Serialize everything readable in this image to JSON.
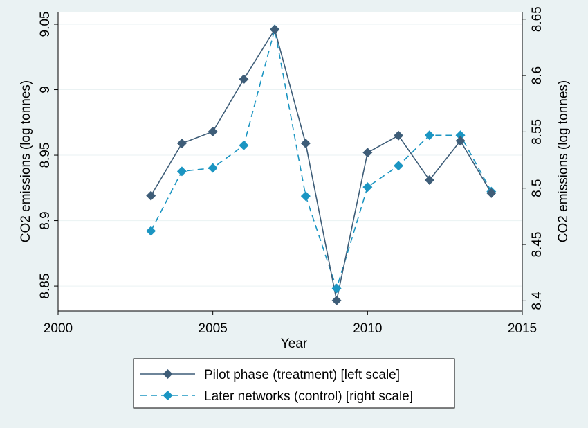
{
  "chart_data": {
    "type": "line",
    "title": "",
    "xlabel": "Year",
    "ylabel_left": "CO2 emissions (log tonnes)",
    "ylabel_right": "CO2 emissions (log tonnes)",
    "xlim": [
      2000,
      2015
    ],
    "ylim_left": [
      8.831,
      9.059
    ],
    "ylim_right": [
      8.391,
      8.656
    ],
    "x_ticks": [
      2000,
      2005,
      2010,
      2015
    ],
    "y_ticks_left": [
      8.85,
      8.9,
      8.95,
      9,
      9.05
    ],
    "y_ticks_left_labels": [
      "8.85",
      "8.9",
      "8.95",
      "9",
      "9.05"
    ],
    "y_ticks_right": [
      8.4,
      8.45,
      8.5,
      8.55,
      8.6,
      8.65
    ],
    "y_ticks_right_labels": [
      "8.4",
      "8.45",
      "8.5",
      "8.55",
      "8.6",
      "8.65"
    ],
    "grid": "horizontal",
    "legend_position": "bottom",
    "series": [
      {
        "name": "Pilot phase (treatment) [left scale]",
        "axis": "left",
        "color": "#3e5d78",
        "dash": "solid",
        "x": [
          2003,
          2004,
          2005,
          2006,
          2007,
          2008,
          2009,
          2010,
          2011,
          2012,
          2013,
          2014
        ],
        "values": [
          8.919,
          8.959,
          8.968,
          9.008,
          9.046,
          8.959,
          8.839,
          8.952,
          8.965,
          8.931,
          8.961,
          8.921
        ]
      },
      {
        "name": "Later networks (control) [right scale]",
        "axis": "right",
        "color": "#1b95c2",
        "dash": "dashed",
        "x": [
          2003,
          2004,
          2005,
          2006,
          2007,
          2008,
          2009,
          2010,
          2011,
          2012,
          2013,
          2014
        ],
        "values": [
          8.462,
          8.515,
          8.518,
          8.538,
          8.641,
          8.493,
          8.411,
          8.501,
          8.52,
          8.547,
          8.547,
          8.497
        ]
      }
    ]
  }
}
